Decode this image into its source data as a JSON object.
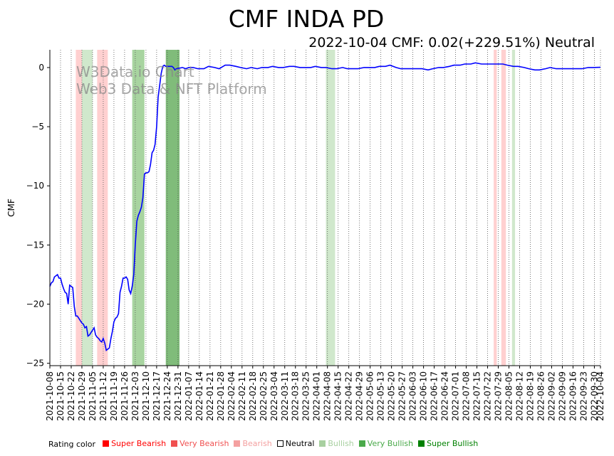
{
  "chart_data": {
    "type": "line",
    "title": "CMF INDA PD",
    "subtitle": "2022-10-04 CMF: 0.02(+229.51%) Neutral",
    "ylabel": "CMF",
    "xlabel": "",
    "ylim": [
      -25.2,
      1.5
    ],
    "xlim": [
      "2021-10-08",
      "2022-10-04"
    ],
    "yticks": [
      0,
      -5,
      -10,
      -15,
      -20,
      -25
    ],
    "ytick_labels": [
      "0",
      "−5",
      "−10",
      "−15",
      "−20",
      "−25"
    ],
    "xtick_labels": [
      "2021-10-08",
      "2021-10-15",
      "2021-10-22",
      "2021-10-29",
      "2021-11-05",
      "2021-11-12",
      "2021-11-19",
      "2021-11-26",
      "2021-12-03",
      "2021-12-10",
      "2021-12-17",
      "2021-12-24",
      "2021-12-31",
      "2022-01-07",
      "2022-01-14",
      "2022-01-21",
      "2022-01-28",
      "2022-02-04",
      "2022-02-11",
      "2022-02-18",
      "2022-02-25",
      "2022-03-04",
      "2022-03-11",
      "2022-03-18",
      "2022-03-25",
      "2022-04-01",
      "2022-04-08",
      "2022-04-15",
      "2022-04-22",
      "2022-04-29",
      "2022-05-06",
      "2022-05-13",
      "2022-05-20",
      "2022-05-27",
      "2022-06-03",
      "2022-06-10",
      "2022-06-17",
      "2022-06-24",
      "2022-07-01",
      "2022-07-08",
      "2022-07-15",
      "2022-07-22",
      "2022-07-29",
      "2022-08-05",
      "2022-08-12",
      "2022-08-19",
      "2022-08-26",
      "2022-09-02",
      "2022-09-09",
      "2022-09-16",
      "2022-09-23",
      "2022-09-30",
      "2022-10-04"
    ],
    "watermark": [
      "W3Data.io Chart",
      "Web3 Data & NFT Platform"
    ],
    "series": [
      {
        "name": "CMF",
        "color": "#0000ff",
        "points": [
          [
            "2021-10-08",
            -18.5
          ],
          [
            "2021-10-09",
            -18.2
          ],
          [
            "2021-10-10",
            -18.1
          ],
          [
            "2021-10-11",
            -17.7
          ],
          [
            "2021-10-12",
            -17.6
          ],
          [
            "2021-10-13",
            -17.5
          ],
          [
            "2021-10-14",
            -17.8
          ],
          [
            "2021-10-15",
            -17.8
          ],
          [
            "2021-10-16",
            -18.3
          ],
          [
            "2021-10-17",
            -18.7
          ],
          [
            "2021-10-18",
            -19.0
          ],
          [
            "2021-10-19",
            -19.1
          ],
          [
            "2021-10-20",
            -20.0
          ],
          [
            "2021-10-21",
            -18.4
          ],
          [
            "2021-10-22",
            -18.5
          ],
          [
            "2021-10-23",
            -18.6
          ],
          [
            "2021-10-24",
            -20.2
          ],
          [
            "2021-10-25",
            -21.0
          ],
          [
            "2021-10-26",
            -21.0
          ],
          [
            "2021-10-27",
            -21.2
          ],
          [
            "2021-10-28",
            -21.4
          ],
          [
            "2021-10-29",
            -21.6
          ],
          [
            "2021-10-30",
            -21.7
          ],
          [
            "2021-10-31",
            -22.0
          ],
          [
            "2021-11-01",
            -21.9
          ],
          [
            "2021-11-02",
            -22.7
          ],
          [
            "2021-11-03",
            -22.6
          ],
          [
            "2021-11-04",
            -22.4
          ],
          [
            "2021-11-05",
            -22.2
          ],
          [
            "2021-11-06",
            -22.0
          ],
          [
            "2021-11-07",
            -22.6
          ],
          [
            "2021-11-08",
            -22.8
          ],
          [
            "2021-11-09",
            -22.9
          ],
          [
            "2021-11-10",
            -23.1
          ],
          [
            "2021-11-11",
            -23.2
          ],
          [
            "2021-11-12",
            -22.9
          ],
          [
            "2021-11-13",
            -23.3
          ],
          [
            "2021-11-14",
            -23.9
          ],
          [
            "2021-11-15",
            -23.8
          ],
          [
            "2021-11-16",
            -23.7
          ],
          [
            "2021-11-17",
            -22.9
          ],
          [
            "2021-11-18",
            -22.3
          ],
          [
            "2021-11-19",
            -21.5
          ],
          [
            "2021-11-20",
            -21.2
          ],
          [
            "2021-11-21",
            -21.1
          ],
          [
            "2021-11-22",
            -20.8
          ],
          [
            "2021-11-23",
            -19.0
          ],
          [
            "2021-11-24",
            -18.5
          ],
          [
            "2021-11-25",
            -17.8
          ],
          [
            "2021-11-26",
            -17.8
          ],
          [
            "2021-11-27",
            -17.7
          ],
          [
            "2021-11-28",
            -17.9
          ],
          [
            "2021-11-29",
            -18.8
          ],
          [
            "2021-11-30",
            -19.1
          ],
          [
            "2021-12-01",
            -18.5
          ],
          [
            "2021-12-02",
            -17.5
          ],
          [
            "2021-12-03",
            -15.0
          ],
          [
            "2021-12-04",
            -13.0
          ],
          [
            "2021-12-05",
            -12.5
          ],
          [
            "2021-12-06",
            -12.2
          ],
          [
            "2021-12-07",
            -11.8
          ],
          [
            "2021-12-08",
            -11.0
          ],
          [
            "2021-12-09",
            -9.0
          ],
          [
            "2021-12-10",
            -8.9
          ],
          [
            "2021-12-11",
            -8.9
          ],
          [
            "2021-12-12",
            -8.8
          ],
          [
            "2021-12-13",
            -8.2
          ],
          [
            "2021-12-14",
            -7.2
          ],
          [
            "2021-12-15",
            -7.0
          ],
          [
            "2021-12-16",
            -6.5
          ],
          [
            "2021-12-17",
            -5.0
          ],
          [
            "2021-12-18",
            -2.5
          ],
          [
            "2021-12-19",
            -1.5
          ],
          [
            "2021-12-20",
            -0.5
          ],
          [
            "2021-12-21",
            0.1
          ],
          [
            "2021-12-22",
            0.2
          ],
          [
            "2021-12-23",
            0.1
          ],
          [
            "2021-12-24",
            0.1
          ],
          [
            "2021-12-27",
            0.1
          ],
          [
            "2021-12-28",
            0.0
          ],
          [
            "2021-12-29",
            -0.2
          ],
          [
            "2021-12-30",
            -0.1
          ],
          [
            "2022-01-03",
            0.0
          ],
          [
            "2022-01-05",
            -0.1
          ],
          [
            "2022-01-07",
            0.0
          ],
          [
            "2022-01-10",
            0.0
          ],
          [
            "2022-01-13",
            -0.1
          ],
          [
            "2022-01-17",
            -0.1
          ],
          [
            "2022-01-20",
            0.1
          ],
          [
            "2022-01-24",
            0.0
          ],
          [
            "2022-01-27",
            -0.1
          ],
          [
            "2022-01-31",
            0.2
          ],
          [
            "2022-02-03",
            0.2
          ],
          [
            "2022-02-07",
            0.1
          ],
          [
            "2022-02-10",
            0.0
          ],
          [
            "2022-02-14",
            -0.1
          ],
          [
            "2022-02-17",
            0.0
          ],
          [
            "2022-02-21",
            -0.1
          ],
          [
            "2022-02-24",
            0.0
          ],
          [
            "2022-02-28",
            0.0
          ],
          [
            "2022-03-03",
            0.1
          ],
          [
            "2022-03-07",
            0.0
          ],
          [
            "2022-03-10",
            0.0
          ],
          [
            "2022-03-14",
            0.1
          ],
          [
            "2022-03-17",
            0.1
          ],
          [
            "2022-03-21",
            0.0
          ],
          [
            "2022-03-24",
            0.0
          ],
          [
            "2022-03-28",
            0.0
          ],
          [
            "2022-03-31",
            0.1
          ],
          [
            "2022-04-04",
            0.0
          ],
          [
            "2022-04-07",
            0.0
          ],
          [
            "2022-04-11",
            -0.1
          ],
          [
            "2022-04-14",
            -0.1
          ],
          [
            "2022-04-18",
            0.0
          ],
          [
            "2022-04-21",
            -0.1
          ],
          [
            "2022-04-25",
            -0.1
          ],
          [
            "2022-04-28",
            -0.1
          ],
          [
            "2022-05-02",
            0.0
          ],
          [
            "2022-05-05",
            0.0
          ],
          [
            "2022-05-09",
            0.0
          ],
          [
            "2022-05-12",
            0.1
          ],
          [
            "2022-05-16",
            0.1
          ],
          [
            "2022-05-19",
            0.2
          ],
          [
            "2022-05-23",
            0.0
          ],
          [
            "2022-05-26",
            -0.1
          ],
          [
            "2022-05-30",
            -0.1
          ],
          [
            "2022-06-02",
            -0.1
          ],
          [
            "2022-06-06",
            -0.1
          ],
          [
            "2022-06-09",
            -0.1
          ],
          [
            "2022-06-13",
            -0.2
          ],
          [
            "2022-06-16",
            -0.1
          ],
          [
            "2022-06-20",
            0.0
          ],
          [
            "2022-06-23",
            0.0
          ],
          [
            "2022-06-27",
            0.1
          ],
          [
            "2022-06-30",
            0.2
          ],
          [
            "2022-07-04",
            0.2
          ],
          [
            "2022-07-07",
            0.3
          ],
          [
            "2022-07-11",
            0.3
          ],
          [
            "2022-07-14",
            0.4
          ],
          [
            "2022-07-18",
            0.3
          ],
          [
            "2022-07-21",
            0.3
          ],
          [
            "2022-07-25",
            0.3
          ],
          [
            "2022-07-28",
            0.3
          ],
          [
            "2022-08-01",
            0.3
          ],
          [
            "2022-08-04",
            0.2
          ],
          [
            "2022-08-08",
            0.1
          ],
          [
            "2022-08-11",
            0.1
          ],
          [
            "2022-08-15",
            0.0
          ],
          [
            "2022-08-18",
            -0.1
          ],
          [
            "2022-08-22",
            -0.2
          ],
          [
            "2022-08-25",
            -0.2
          ],
          [
            "2022-08-29",
            -0.1
          ],
          [
            "2022-09-01",
            0.0
          ],
          [
            "2022-09-05",
            -0.1
          ],
          [
            "2022-09-08",
            -0.1
          ],
          [
            "2022-09-12",
            -0.1
          ],
          [
            "2022-09-15",
            -0.1
          ],
          [
            "2022-09-19",
            -0.1
          ],
          [
            "2022-09-22",
            -0.1
          ],
          [
            "2022-09-26",
            0.0
          ],
          [
            "2022-09-29",
            0.0
          ],
          [
            "2022-10-04",
            0.02
          ]
        ]
      }
    ],
    "rating_bands": [
      {
        "start": "2021-10-25",
        "end": "2021-10-29",
        "rating": "Bearish"
      },
      {
        "start": "2021-10-29",
        "end": "2021-11-05",
        "rating": "Bullish"
      },
      {
        "start": "2021-11-08",
        "end": "2021-11-15",
        "rating": "Bearish"
      },
      {
        "start": "2021-12-01",
        "end": "2021-12-09",
        "rating": "Very Bullish"
      },
      {
        "start": "2021-12-23",
        "end": "2022-01-01",
        "rating": "Super Bullish"
      },
      {
        "start": "2022-04-07",
        "end": "2022-04-13",
        "rating": "Bullish"
      },
      {
        "start": "2022-07-26",
        "end": "2022-07-28",
        "rating": "Bearish"
      },
      {
        "start": "2022-07-31",
        "end": "2022-08-03",
        "rating": "Bearish"
      },
      {
        "start": "2022-08-07",
        "end": "2022-08-09",
        "rating": "Bullish"
      }
    ],
    "legend": {
      "label": "Rating color",
      "items": [
        {
          "name": "Super Bearish",
          "color": "#ff0000"
        },
        {
          "name": "Very Bearish",
          "color": "#f05050"
        },
        {
          "name": "Bearish",
          "color": "#f4a0a0"
        },
        {
          "name": "Neutral",
          "color": "#000000",
          "swatch": "outline"
        },
        {
          "name": "Bullish",
          "color": "#a8d0a0"
        },
        {
          "name": "Very Bullish",
          "color": "#4aaa4a"
        },
        {
          "name": "Super Bullish",
          "color": "#008000"
        }
      ]
    },
    "band_colors": {
      "Super Bearish": "#ff0000",
      "Very Bearish": "#f05050",
      "Bearish": "#ffd0d0",
      "Bullish": "#d0e8cc",
      "Very Bullish": "#a8d4a0",
      "Super Bullish": "#80bc7a"
    },
    "line_color": "#0000ff"
  }
}
